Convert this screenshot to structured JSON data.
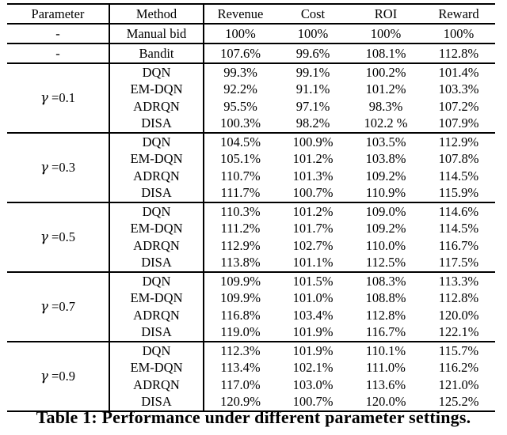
{
  "caption": "Table 1: Performance under different parameter settings.",
  "table": {
    "columns": [
      "Parameter",
      "Method",
      "Revenue",
      "Cost",
      "ROI",
      "Reward"
    ],
    "groups": [
      {
        "param": "-",
        "rows": [
          {
            "method": "Manual bid",
            "values": [
              "100%",
              "100%",
              "100%",
              "100%"
            ],
            "bold": false
          }
        ]
      },
      {
        "param": "-",
        "rows": [
          {
            "method": "Bandit",
            "values": [
              "107.6%",
              "99.6%",
              "108.1%",
              "112.8%"
            ],
            "bold": false
          }
        ]
      },
      {
        "param": "γ =0.1",
        "rows": [
          {
            "method": "DQN",
            "values": [
              "99.3%",
              "99.1%",
              "100.2%",
              "101.4%"
            ],
            "bold": false
          },
          {
            "method": "EM-DQN",
            "values": [
              "92.2%",
              "91.1%",
              "101.2%",
              "103.3%"
            ],
            "bold": false
          },
          {
            "method": "ADRQN",
            "values": [
              "95.5%",
              "97.1%",
              "98.3%",
              "107.2%"
            ],
            "bold": false
          },
          {
            "method": "DISA",
            "values": [
              "100.3%",
              "98.2%",
              "102.2 %",
              "107.9%"
            ],
            "bold": true
          }
        ]
      },
      {
        "param": "γ =0.3",
        "rows": [
          {
            "method": "DQN",
            "values": [
              "104.5%",
              "100.9%",
              "103.5%",
              "112.9%"
            ],
            "bold": false
          },
          {
            "method": "EM-DQN",
            "values": [
              "105.1%",
              "101.2%",
              "103.8%",
              "107.8%"
            ],
            "bold": false
          },
          {
            "method": "ADRQN",
            "values": [
              "110.7%",
              "101.3%",
              "109.2%",
              "114.5%"
            ],
            "bold": false
          },
          {
            "method": "DISA",
            "values": [
              "111.7%",
              "100.7%",
              "110.9%",
              "115.9%"
            ],
            "bold": true
          }
        ]
      },
      {
        "param": "γ =0.5",
        "rows": [
          {
            "method": "DQN",
            "values": [
              "110.3%",
              "101.2%",
              "109.0%",
              "114.6%"
            ],
            "bold": false
          },
          {
            "method": "EM-DQN",
            "values": [
              "111.2%",
              "101.7%",
              "109.2%",
              "114.5%"
            ],
            "bold": false
          },
          {
            "method": "ADRQN",
            "values": [
              "112.9%",
              "102.7%",
              "110.0%",
              "116.7%"
            ],
            "bold": false
          },
          {
            "method": "DISA",
            "values": [
              "113.8%",
              "101.1%",
              "112.5%",
              "117.5%"
            ],
            "bold": true
          }
        ]
      },
      {
        "param": "γ =0.7",
        "rows": [
          {
            "method": "DQN",
            "values": [
              "109.9%",
              "101.5%",
              "108.3%",
              "113.3%"
            ],
            "bold": false
          },
          {
            "method": "EM-DQN",
            "values": [
              "109.9%",
              "101.0%",
              "108.8%",
              "112.8%"
            ],
            "bold": false
          },
          {
            "method": "ADRQN",
            "values": [
              "116.8%",
              "103.4%",
              "112.8%",
              "120.0%"
            ],
            "bold": false
          },
          {
            "method": "DISA",
            "values": [
              "119.0%",
              "101.9%",
              "116.7%",
              "122.1%"
            ],
            "bold": true
          }
        ]
      },
      {
        "param": "γ =0.9",
        "rows": [
          {
            "method": "DQN",
            "values": [
              "112.3%",
              "101.9%",
              "110.1%",
              "115.7%"
            ],
            "bold": false
          },
          {
            "method": "EM-DQN",
            "values": [
              "113.4%",
              "102.1%",
              "111.0%",
              "116.2%"
            ],
            "bold": false
          },
          {
            "method": "ADRQN",
            "values": [
              "117.0%",
              "103.0%",
              "113.6%",
              "121.0%"
            ],
            "bold": false
          },
          {
            "method": "DISA",
            "values": [
              "120.9%",
              "100.7%",
              "120.0%",
              "125.2%"
            ],
            "bold": true
          }
        ]
      }
    ]
  }
}
